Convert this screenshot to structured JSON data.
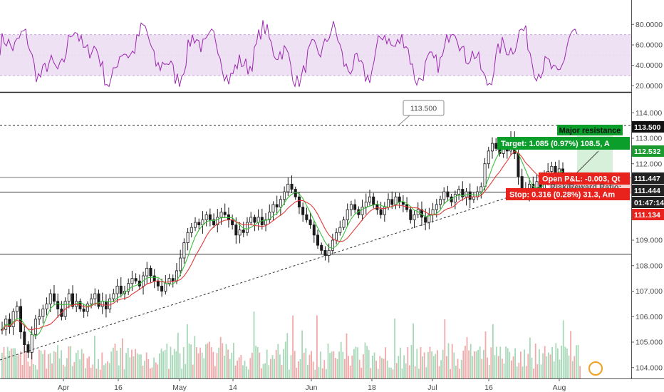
{
  "chart_data": {
    "type": "candlestick",
    "x_ticks": [
      "Apr",
      "16",
      "May",
      "14",
      "Jun",
      "18",
      "Jul",
      "16",
      "Aug"
    ],
    "rsi_panel": {
      "y_ticks": [
        "80.0000",
        "60.0000",
        "40.0000",
        "20.0000"
      ],
      "band_upper": 70,
      "band_lower": 30,
      "ylim": [
        15,
        95
      ]
    },
    "price_panel": {
      "y_ticks": [
        "114.000",
        "113.000",
        "112.000",
        "111.000",
        "110.000",
        "109.000",
        "108.000",
        "107.000",
        "106.000",
        "105.000",
        "104.000"
      ],
      "ylim": [
        103.7,
        114.55
      ],
      "candles_close": [
        105.5,
        105.9,
        105.6,
        106.2,
        106.4,
        105.4,
        104.9,
        104.6,
        105.3,
        105.9,
        106.0,
        106.3,
        106.5,
        106.9,
        106.6,
        106.3,
        106.0,
        106.6,
        106.9,
        106.4,
        106.6,
        106.3,
        106.2,
        106.5,
        106.7,
        106.9,
        106.4,
        106.6,
        106.3,
        106.7,
        106.9,
        107.2,
        106.9,
        107.0,
        107.3,
        107.5,
        107.4,
        107.2,
        107.6,
        107.9,
        107.6,
        107.4,
        107.2,
        107.0,
        107.3,
        107.5,
        107.4,
        107.8,
        108.3,
        108.9,
        109.3,
        109.5,
        109.7,
        109.6,
        109.8,
        110.0,
        109.8,
        109.6,
        109.9,
        110.1,
        110.0,
        109.8,
        109.6,
        109.2,
        109.4,
        109.3,
        109.7,
        109.9,
        109.7,
        109.9,
        109.6,
        109.8,
        110.1,
        110.4,
        110.3,
        110.6,
        110.9,
        111.2,
        111.0,
        110.7,
        110.3,
        110.0,
        109.8,
        109.6,
        109.2,
        108.8,
        108.6,
        108.4,
        108.6,
        109.0,
        109.3,
        109.5,
        109.8,
        110.2,
        110.4,
        110.2,
        110.0,
        110.3,
        110.5,
        110.7,
        110.4,
        110.2,
        110.0,
        110.3,
        110.6,
        110.4,
        110.7,
        110.5,
        110.4,
        110.2,
        109.8,
        110.0,
        110.2,
        109.9,
        109.7,
        110.0,
        110.2,
        110.4,
        110.6,
        110.9,
        110.7,
        110.5,
        110.8,
        111.0,
        110.7,
        110.9,
        110.6,
        110.7,
        110.9,
        111.1,
        112.0,
        112.5,
        112.8,
        112.6,
        112.4,
        112.6,
        112.5,
        113.0,
        112.4,
        111.5,
        111.0,
        110.8,
        111.2,
        111.0,
        111.3,
        111.0,
        111.4,
        111.7,
        111.9,
        111.6,
        111.8,
        111.5
      ]
    },
    "price_tags": [
      {
        "text": "113.500",
        "color": "#111111"
      },
      {
        "text": "112.532",
        "color": "#1a9a2f"
      },
      {
        "text": "111.447",
        "color": "#222222"
      },
      {
        "text": "111.444",
        "color": "#222222"
      },
      {
        "text": "01:47:14",
        "color": "#222222"
      },
      {
        "text": "111.134",
        "color": "#e8221c"
      }
    ],
    "levels": {
      "major": 113.5,
      "line_a": 111.447,
      "line_b": 111.444,
      "lower": 108.45
    },
    "trendline": {
      "from": 104.3,
      "to": 111.1
    },
    "annotations": {
      "callout": "113.500",
      "major_resistance": "Major resistance",
      "target": "Target: 1.085 (0.97%) 108.5, A",
      "open_pl": "Open P&L: -0.003, Qt",
      "risk_reward": "Risk/Reward Ratio:",
      "stop": "Stop: 0.316 (0.28%) 31.3, Am"
    },
    "colors": {
      "rsi_line": "#9c27b0",
      "rsi_band": "#ede1f3",
      "ma_green": "#3cc13c",
      "ma_red": "#e33b3b",
      "candle": "#1a1a1a",
      "volume_up": "#a7d8b8",
      "volume_down": "#f2a9a9",
      "target": "#0b9e2a",
      "stop": "#e8221c"
    }
  }
}
